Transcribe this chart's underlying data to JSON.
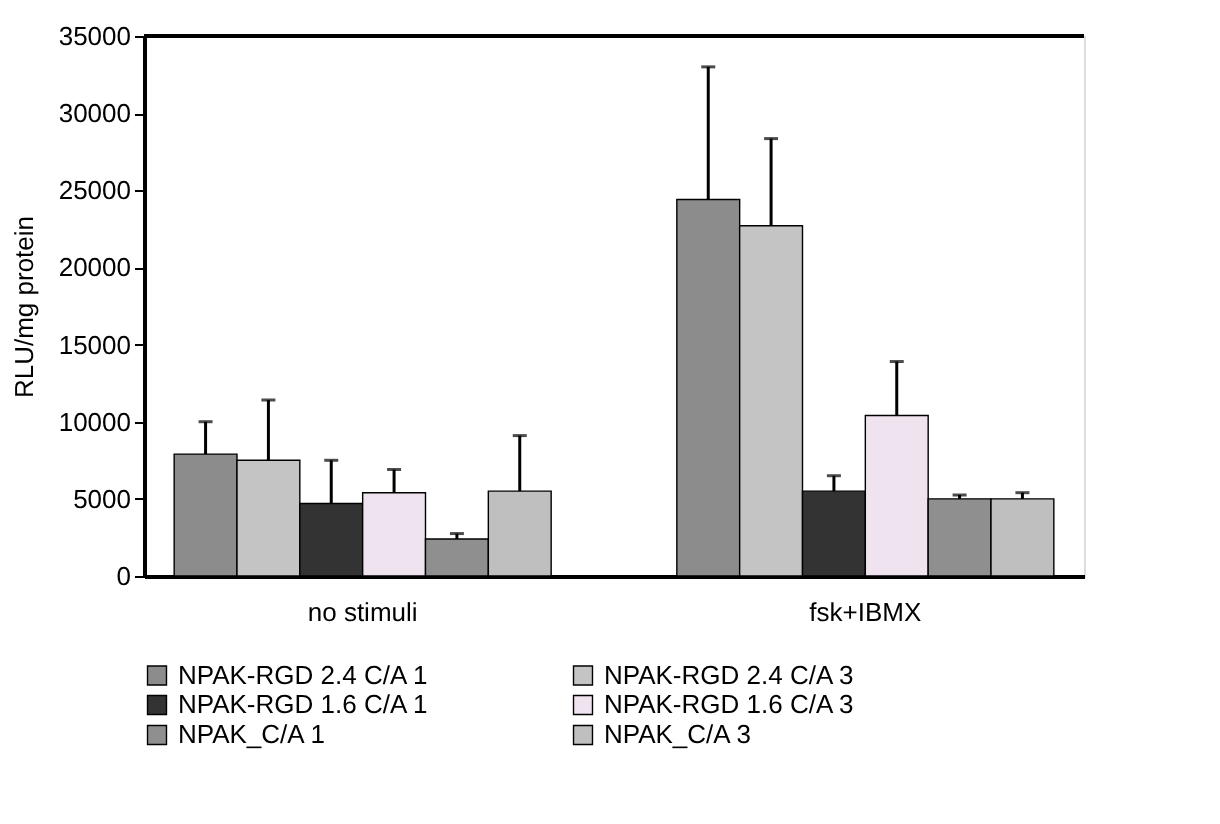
{
  "chart_data": {
    "type": "bar",
    "ylabel": "RLU/mg protein",
    "categories": [
      "no stimuli",
      "fsk+IBMX"
    ],
    "series": [
      {
        "name": "NPAK-RGD 2.4 C/A 1",
        "color": "#8c8c8c",
        "values": [
          7900,
          24400
        ],
        "errors": [
          [
            7900,
            10000
          ],
          [
            24400,
            33000
          ]
        ]
      },
      {
        "name": "NPAK-RGD 2.4 C/A 3",
        "color": "#c4c4c4",
        "values": [
          7500,
          22700
        ],
        "errors": [
          [
            7500,
            11400
          ],
          [
            22700,
            28350
          ]
        ]
      },
      {
        "name": "NPAK-RGD 1.6 C/A 1",
        "color": "#333333",
        "values": [
          4700,
          5500
        ],
        "errors": [
          [
            4700,
            7500
          ],
          [
            5500,
            6500
          ]
        ]
      },
      {
        "name": "NPAK-RGD 1.6 C/A 3",
        "color": "#efe3f0",
        "values": [
          5400,
          10400
        ],
        "errors": [
          [
            5400,
            6900
          ],
          [
            10400,
            13900
          ]
        ]
      },
      {
        "name": "NPAK_C/A 1",
        "color": "#8f8f8f",
        "values": [
          2400,
          5000
        ],
        "errors": [
          [
            2400,
            2750
          ],
          [
            5000,
            5250
          ]
        ]
      },
      {
        "name": "NPAK_C/A 3",
        "color": "#bfbfbf",
        "values": [
          5500,
          5000
        ],
        "errors": [
          [
            5500,
            9100
          ],
          [
            5000,
            5400
          ]
        ]
      }
    ],
    "ylim": [
      0,
      35000
    ],
    "yticks": [
      0,
      5000,
      10000,
      15000,
      20000,
      25000,
      30000,
      35000
    ],
    "grid": false,
    "legend": "bottom"
  }
}
